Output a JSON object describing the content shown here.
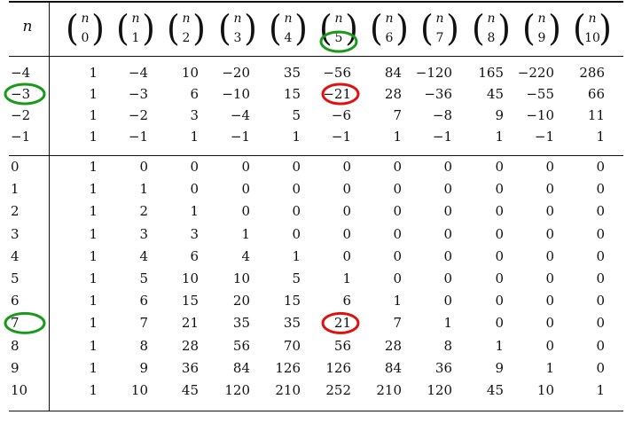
{
  "header": {
    "n_label": "n",
    "binomial_top": "n",
    "k_values": [
      "0",
      "1",
      "2",
      "3",
      "4",
      "5",
      "6",
      "7",
      "8",
      "9",
      "10"
    ]
  },
  "rows": [
    {
      "n": "−4",
      "values": [
        "1",
        "−4",
        "10",
        "−20",
        "35",
        "−56",
        "84",
        "−120",
        "165",
        "−220",
        "286"
      ]
    },
    {
      "n": "−3",
      "values": [
        "1",
        "−3",
        "6",
        "−10",
        "15",
        "−21",
        "28",
        "−36",
        "45",
        "−55",
        "66"
      ]
    },
    {
      "n": "−2",
      "values": [
        "1",
        "−2",
        "3",
        "−4",
        "5",
        "−6",
        "7",
        "−8",
        "9",
        "−10",
        "11"
      ]
    },
    {
      "n": "−1",
      "values": [
        "1",
        "−1",
        "1",
        "−1",
        "1",
        "−1",
        "1",
        "−1",
        "1",
        "−1",
        "1"
      ]
    },
    {
      "n": "0",
      "values": [
        "1",
        "0",
        "0",
        "0",
        "0",
        "0",
        "0",
        "0",
        "0",
        "0",
        "0"
      ]
    },
    {
      "n": "1",
      "values": [
        "1",
        "1",
        "0",
        "0",
        "0",
        "0",
        "0",
        "0",
        "0",
        "0",
        "0"
      ]
    },
    {
      "n": "2",
      "values": [
        "1",
        "2",
        "1",
        "0",
        "0",
        "0",
        "0",
        "0",
        "0",
        "0",
        "0"
      ]
    },
    {
      "n": "3",
      "values": [
        "1",
        "3",
        "3",
        "1",
        "0",
        "0",
        "0",
        "0",
        "0",
        "0",
        "0"
      ]
    },
    {
      "n": "4",
      "values": [
        "1",
        "4",
        "6",
        "4",
        "1",
        "0",
        "0",
        "0",
        "0",
        "0",
        "0"
      ]
    },
    {
      "n": "5",
      "values": [
        "1",
        "5",
        "10",
        "10",
        "5",
        "1",
        "0",
        "0",
        "0",
        "0",
        "0"
      ]
    },
    {
      "n": "6",
      "values": [
        "1",
        "6",
        "15",
        "20",
        "15",
        "6",
        "1",
        "0",
        "0",
        "0",
        "0"
      ]
    },
    {
      "n": "7",
      "values": [
        "1",
        "7",
        "21",
        "35",
        "35",
        "21",
        "7",
        "1",
        "0",
        "0",
        "0"
      ]
    },
    {
      "n": "8",
      "values": [
        "1",
        "8",
        "28",
        "56",
        "70",
        "56",
        "28",
        "8",
        "1",
        "0",
        "0"
      ]
    },
    {
      "n": "9",
      "values": [
        "1",
        "9",
        "36",
        "84",
        "126",
        "126",
        "84",
        "36",
        "9",
        "1",
        "0"
      ]
    },
    {
      "n": "10",
      "values": [
        "1",
        "10",
        "45",
        "120",
        "210",
        "252",
        "210",
        "120",
        "45",
        "10",
        "1"
      ]
    }
  ],
  "annotations": {
    "green_color": "#1a9a1a",
    "red_color": "#e01010",
    "highlighted_k": "5",
    "highlighted_rows": [
      "−3",
      "7"
    ],
    "highlighted_value": "21"
  }
}
